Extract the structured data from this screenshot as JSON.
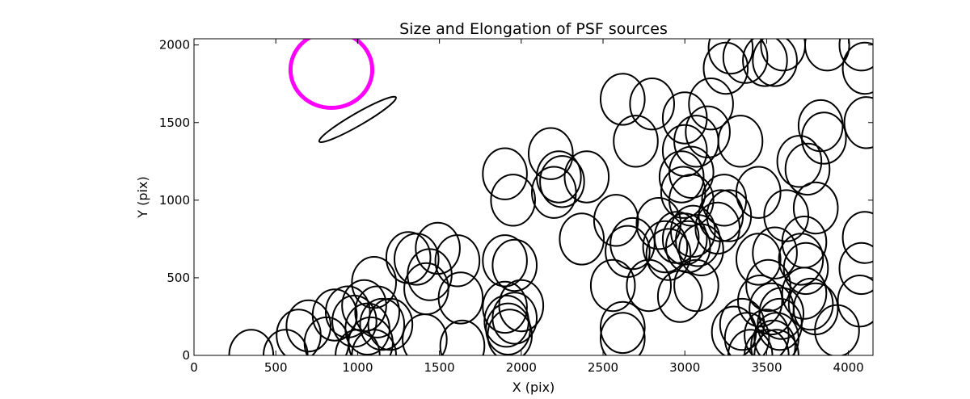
{
  "chart_data": {
    "type": "scatter",
    "title": "Size and Elongation of PSF sources",
    "xlabel": "X (pix)",
    "ylabel": "Y (pix)",
    "xlim": [
      0,
      4150
    ],
    "ylim": [
      0,
      2040
    ],
    "xticks": [
      "0",
      "500",
      "1000",
      "1500",
      "2000",
      "2500",
      "3000",
      "3500",
      "4000"
    ],
    "yticks": [
      "0",
      "500",
      "1000",
      "1500",
      "2000"
    ],
    "grid": false,
    "legend": "none",
    "reference_ellipse": {
      "x": 840,
      "y": 1840,
      "rx": 250,
      "ry": 245,
      "angle": 0,
      "color": "#ff00ff"
    },
    "elongated_ellipse": {
      "x": 1000,
      "y": 1520,
      "rx": 270,
      "ry": 40,
      "angle": 30,
      "color": "#000000"
    },
    "ellipse_color": "#000000",
    "sources": [
      [
        350,
        0
      ],
      [
        560,
        0
      ],
      [
        640,
        130
      ],
      [
        700,
        190
      ],
      [
        810,
        80
      ],
      [
        860,
        260
      ],
      [
        940,
        280
      ],
      [
        980,
        220
      ],
      [
        1040,
        320
      ],
      [
        1060,
        170
      ],
      [
        1000,
        0
      ],
      [
        1080,
        80
      ],
      [
        1100,
        0
      ],
      [
        1120,
        280
      ],
      [
        1150,
        200
      ],
      [
        1200,
        200
      ],
      [
        1100,
        470
      ],
      [
        1310,
        630
      ],
      [
        1360,
        620
      ],
      [
        1420,
        430
      ],
      [
        1440,
        520
      ],
      [
        1490,
        690
      ],
      [
        1610,
        610
      ],
      [
        1410,
        100
      ],
      [
        1630,
        370
      ],
      [
        1640,
        60
      ],
      [
        1900,
        610
      ],
      [
        1960,
        580
      ],
      [
        1900,
        310
      ],
      [
        1910,
        220
      ],
      [
        1920,
        170
      ],
      [
        1930,
        130
      ],
      [
        1960,
        240
      ],
      [
        2000,
        320
      ],
      [
        1900,
        1170
      ],
      [
        1950,
        1000
      ],
      [
        2180,
        1300
      ],
      [
        2200,
        1050
      ],
      [
        2230,
        1150
      ],
      [
        2250,
        1120
      ],
      [
        2400,
        1150
      ],
      [
        2370,
        750
      ],
      [
        2560,
        450
      ],
      [
        2580,
        870
      ],
      [
        2620,
        180
      ],
      [
        2620,
        110
      ],
      [
        2650,
        670
      ],
      [
        2680,
        720
      ],
      [
        2780,
        450
      ],
      [
        2840,
        850
      ],
      [
        2880,
        700
      ],
      [
        2900,
        650
      ],
      [
        2950,
        760
      ],
      [
        2970,
        380
      ],
      [
        3000,
        750
      ],
      [
        3020,
        700
      ],
      [
        3050,
        800
      ],
      [
        3080,
        740
      ],
      [
        3100,
        680
      ],
      [
        3070,
        450
      ],
      [
        2990,
        1050
      ],
      [
        3040,
        1000
      ],
      [
        2980,
        1150
      ],
      [
        3040,
        1180
      ],
      [
        3000,
        1320
      ],
      [
        3070,
        1380
      ],
      [
        3140,
        1440
      ],
      [
        3160,
        1620
      ],
      [
        3000,
        1530
      ],
      [
        2800,
        1620
      ],
      [
        2620,
        1650
      ],
      [
        2700,
        1380
      ],
      [
        3340,
        1380
      ],
      [
        3370,
        1920
      ],
      [
        3250,
        1850
      ],
      [
        3280,
        1980
      ],
      [
        3490,
        1900
      ],
      [
        3550,
        1900
      ],
      [
        3600,
        2000
      ],
      [
        3870,
        2000
      ],
      [
        4080,
        2000
      ],
      [
        4100,
        1850
      ],
      [
        4110,
        1500
      ],
      [
        3830,
        1480
      ],
      [
        3850,
        1400
      ],
      [
        3750,
        1200
      ],
      [
        3700,
        1250
      ],
      [
        3450,
        1050
      ],
      [
        3620,
        900
      ],
      [
        3220,
        900
      ],
      [
        3200,
        820
      ],
      [
        3270,
        900
      ],
      [
        3240,
        1000
      ],
      [
        3450,
        620
      ],
      [
        3550,
        660
      ],
      [
        3730,
        730
      ],
      [
        3710,
        620
      ],
      [
        3800,
        950
      ],
      [
        3740,
        560
      ],
      [
        3730,
        400
      ],
      [
        3510,
        450
      ],
      [
        3460,
        350
      ],
      [
        3530,
        300
      ],
      [
        3590,
        270
      ],
      [
        3580,
        200
      ],
      [
        3560,
        110
      ],
      [
        3500,
        130
      ],
      [
        3560,
        0
      ],
      [
        3540,
        60
      ],
      [
        3350,
        200
      ],
      [
        3300,
        150
      ],
      [
        3380,
        110
      ],
      [
        3500,
        0
      ],
      [
        3400,
        0
      ],
      [
        3770,
        330
      ],
      [
        3800,
        300
      ],
      [
        3930,
        160
      ],
      [
        4070,
        350
      ],
      [
        4080,
        560
      ],
      [
        4100,
        760
      ]
    ]
  }
}
